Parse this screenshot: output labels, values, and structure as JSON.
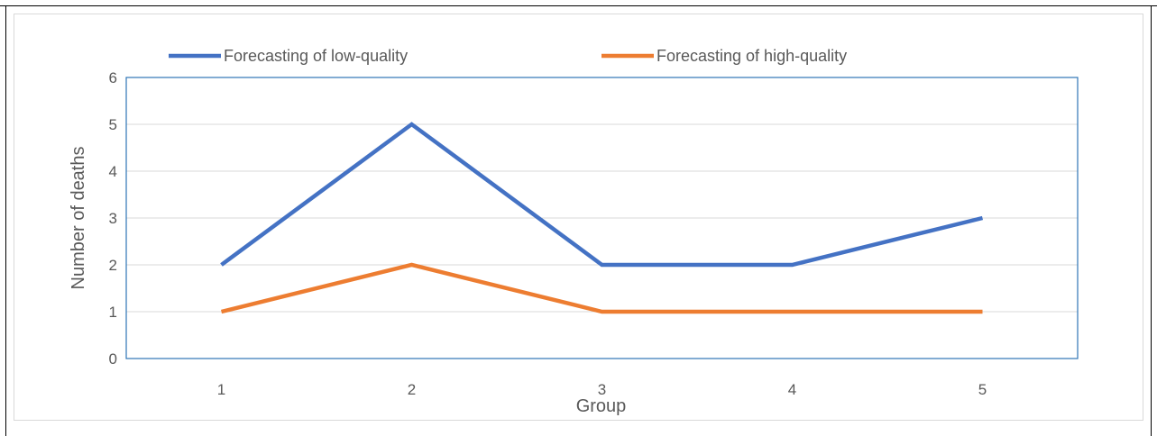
{
  "chart_data": {
    "type": "line",
    "title": "",
    "xlabel": "Group",
    "ylabel": "Number of deaths",
    "categories": [
      "1",
      "2",
      "3",
      "4",
      "5"
    ],
    "series": [
      {
        "name": "Forecasting of low-quality",
        "color": "#4472c4",
        "values": [
          2,
          5,
          2,
          2,
          3
        ]
      },
      {
        "name": "Forecasting of high-quality",
        "color": "#ed7d31",
        "values": [
          1,
          2,
          1,
          1,
          1
        ]
      }
    ],
    "ylim": [
      0,
      6
    ],
    "yticks": [
      0,
      1,
      2,
      3,
      4,
      5,
      6
    ],
    "grid": true,
    "legend_position": "top",
    "plot_border_color": "#2e75b6",
    "grid_color": "#d9d9d9"
  }
}
